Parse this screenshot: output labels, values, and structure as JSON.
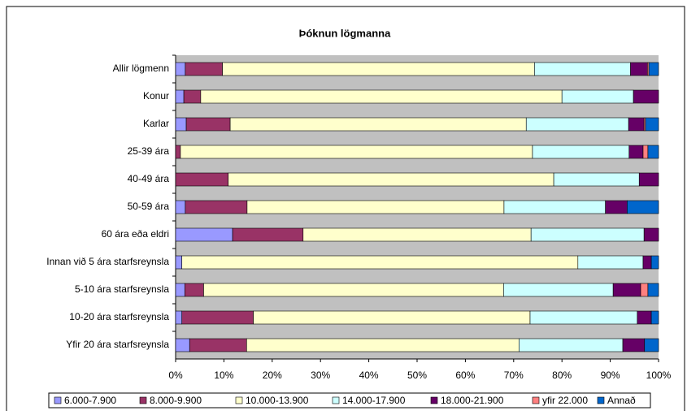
{
  "chart_data": {
    "type": "stacked_barh",
    "title": "Þóknun lögmanna",
    "categories": [
      "Allir lögmenn",
      "Konur",
      "Karlar",
      "25-39 ára",
      "40-49 ára",
      "50-59 ára",
      "60 ára eða eldri",
      "Innan við 5 ára starfsreynsla",
      "5-10 ára starfsreynsla",
      "10-20 ára starfsreynsla",
      "Yfir 20 ára starfsreynsla"
    ],
    "series": [
      {
        "name": "6.000-7.900",
        "color": "#9999ff",
        "values": [
          2.0,
          1.7,
          2.2,
          0,
          0,
          2.0,
          11.8,
          1.3,
          1.9,
          1.3,
          2.9
        ]
      },
      {
        "name": "8.000-9.900",
        "color": "#993366",
        "values": [
          7.7,
          3.5,
          9.1,
          1.0,
          10.9,
          12.8,
          14.6,
          0,
          3.9,
          14.8,
          11.8
        ]
      },
      {
        "name": "10.000-13.900",
        "color": "#ffffcc",
        "values": [
          64.6,
          74.8,
          61.3,
          72.9,
          67.4,
          53.2,
          47.2,
          82.0,
          62.1,
          57.3,
          56.4
        ]
      },
      {
        "name": "14.000-17.900",
        "color": "#ccffff",
        "values": [
          19.9,
          14.8,
          21.2,
          20.0,
          17.7,
          21.0,
          23.4,
          13.5,
          22.7,
          22.2,
          21.5
        ]
      },
      {
        "name": "18.000-21.900",
        "color": "#660066",
        "values": [
          3.5,
          5.2,
          3.2,
          2.9,
          4.0,
          4.5,
          3.0,
          1.7,
          5.7,
          2.9,
          4.5
        ]
      },
      {
        "name": "yfir 22.000",
        "color": "#ff8080",
        "values": [
          0.3,
          0,
          0.3,
          1.0,
          0,
          0,
          0,
          0,
          1.5,
          0,
          0
        ]
      },
      {
        "name": "Annað",
        "color": "#0066cc",
        "values": [
          2.0,
          0,
          2.7,
          2.2,
          0,
          6.5,
          0,
          1.5,
          2.2,
          1.5,
          2.9
        ]
      }
    ],
    "xlim": [
      0,
      100
    ],
    "xticks": [
      {
        "value": 0,
        "label": "0%"
      },
      {
        "value": 10,
        "label": "10%"
      },
      {
        "value": 20,
        "label": "20%"
      },
      {
        "value": 30,
        "label": "30%"
      },
      {
        "value": 40,
        "label": "40%"
      },
      {
        "value": 50,
        "label": "50%"
      },
      {
        "value": 60,
        "label": "60%"
      },
      {
        "value": 70,
        "label": "70%"
      },
      {
        "value": 80,
        "label": "80%"
      },
      {
        "value": 90,
        "label": "90%"
      },
      {
        "value": 100,
        "label": "100%"
      }
    ],
    "legend": "bottom"
  }
}
